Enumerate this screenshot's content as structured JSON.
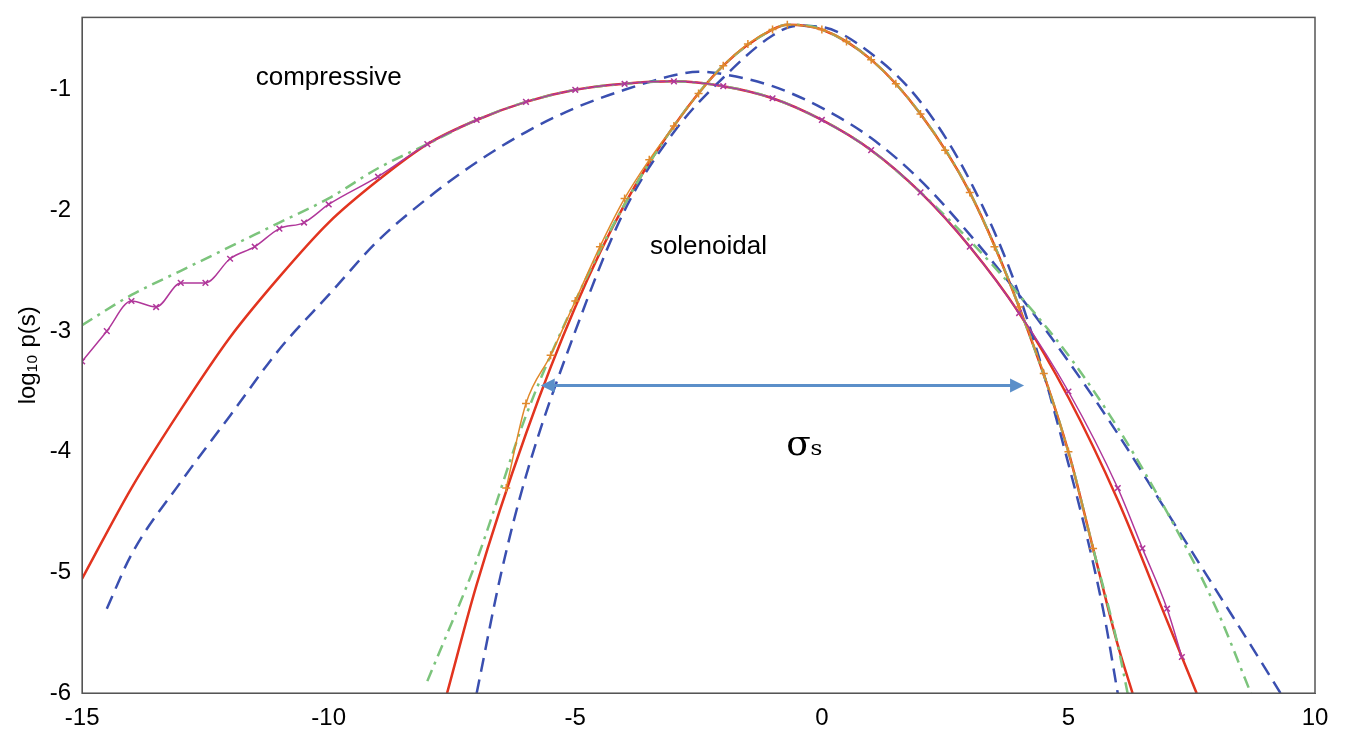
{
  "chart_data": {
    "type": "line",
    "y_label": "log₁₀ p(s)",
    "xlim": [
      -15,
      10
    ],
    "xticks": [
      -15,
      -10,
      -5,
      0,
      5,
      10
    ],
    "ylim": [
      -6,
      -0.4
    ],
    "yticks": [
      -6,
      -5,
      -4,
      -3,
      -2,
      -1
    ],
    "grid": false,
    "series": [
      {
        "color": "#b0379a",
        "line_style": "solid",
        "marker": "x",
        "x": [
          -15,
          -14.5,
          -14,
          -13.5,
          -13,
          -12.5,
          -12,
          -11.5,
          -11,
          -10.5,
          -10,
          -9,
          -8,
          -7,
          -6,
          -5,
          -4,
          -3,
          -2,
          -1,
          0,
          1,
          2,
          3,
          4,
          5,
          6,
          6.5,
          7,
          7.3
        ],
        "values": [
          -3.25,
          -3.0,
          -2.75,
          -2.8,
          -2.6,
          -2.6,
          -2.4,
          -2.3,
          -2.15,
          -2.1,
          -1.95,
          -1.72,
          -1.45,
          -1.25,
          -1.1,
          -1.0,
          -0.95,
          -0.93,
          -0.97,
          -1.07,
          -1.25,
          -1.5,
          -1.85,
          -2.3,
          -2.85,
          -3.5,
          -4.3,
          -4.8,
          -5.3,
          -5.7
        ]
      },
      {
        "color": "#e0892b",
        "line_style": "solid",
        "marker": "+",
        "x": [
          -6.4,
          -6,
          -5.5,
          -5,
          -4.5,
          -4,
          -3.5,
          -3,
          -2.5,
          -2,
          -1.5,
          -1,
          -0.7,
          0,
          0.5,
          1,
          1.5,
          2,
          2.5,
          3,
          3.5,
          4,
          4.5,
          5,
          5.5
        ],
        "values": [
          -4.3,
          -3.6,
          -3.2,
          -2.75,
          -2.3,
          -1.9,
          -1.58,
          -1.3,
          -1.03,
          -0.8,
          -0.62,
          -0.5,
          -0.46,
          -0.5,
          -0.6,
          -0.75,
          -0.95,
          -1.2,
          -1.5,
          -1.85,
          -2.3,
          -2.8,
          -3.35,
          -4.0,
          -4.8
        ]
      },
      {
        "color": "#7cc47c",
        "line_style": "dashdot",
        "x": [
          -15,
          -14,
          -13,
          -12,
          -11,
          -10,
          -9,
          -8,
          -7,
          -6,
          -5,
          -4,
          -3,
          -2,
          -1,
          0,
          1,
          2,
          3,
          4,
          5,
          6,
          7,
          8,
          8.7
        ],
        "values": [
          -2.95,
          -2.7,
          -2.5,
          -2.3,
          -2.1,
          -1.9,
          -1.65,
          -1.45,
          -1.25,
          -1.1,
          -1.0,
          -0.95,
          -0.93,
          -0.97,
          -1.07,
          -1.25,
          -1.5,
          -1.85,
          -2.25,
          -2.7,
          -3.2,
          -3.8,
          -4.5,
          -5.3,
          -6.0
        ]
      },
      {
        "color": "#7cc47c",
        "line_style": "dashdot",
        "x": [
          -8,
          -7,
          -6,
          -5,
          -4,
          -3,
          -2,
          -1,
          -0.7,
          0,
          1,
          2,
          3,
          4,
          5,
          5.5,
          6,
          6.2
        ],
        "values": [
          -5.9,
          -4.9,
          -3.7,
          -2.75,
          -1.95,
          -1.3,
          -0.8,
          -0.5,
          -0.46,
          -0.5,
          -0.75,
          -1.2,
          -1.85,
          -2.8,
          -4.0,
          -4.8,
          -5.6,
          -6.0
        ]
      },
      {
        "color": "#3a4fb0",
        "line_style": "dashed",
        "x": [
          -14.5,
          -14,
          -13,
          -12,
          -11,
          -10,
          -9,
          -8,
          -7,
          -6,
          -5,
          -4,
          -3,
          -2.5,
          -2,
          -1,
          0,
          1,
          2,
          3,
          4,
          5,
          6,
          7,
          8,
          9,
          9.3
        ],
        "values": [
          -5.3,
          -4.85,
          -4.25,
          -3.7,
          -3.15,
          -2.7,
          -2.25,
          -1.9,
          -1.6,
          -1.35,
          -1.15,
          -1.0,
          -0.88,
          -0.85,
          -0.87,
          -0.97,
          -1.15,
          -1.4,
          -1.75,
          -2.2,
          -2.7,
          -3.25,
          -3.85,
          -4.5,
          -5.15,
          -5.8,
          -6.0
        ]
      },
      {
        "color": "#3a4fb0",
        "line_style": "dashed",
        "x": [
          -7,
          -6.5,
          -6,
          -5,
          -4,
          -3,
          -2,
          -1,
          -0.5,
          0,
          1,
          2,
          3,
          4,
          5,
          5.7,
          6
        ],
        "values": [
          -6.0,
          -5.0,
          -4.2,
          -3.0,
          -2.0,
          -1.35,
          -0.9,
          -0.55,
          -0.47,
          -0.48,
          -0.7,
          -1.1,
          -1.75,
          -2.7,
          -4.1,
          -5.3,
          -6.0
        ]
      },
      {
        "color": "#e2341f",
        "line_style": "solid",
        "x": [
          -15,
          -14,
          -13,
          -12,
          -11,
          -10,
          -9,
          -8,
          -7,
          -6,
          -5,
          -4,
          -3,
          -2,
          -1,
          0,
          1,
          2,
          3,
          4,
          5,
          6,
          7,
          7.6
        ],
        "values": [
          -5.05,
          -4.3,
          -3.65,
          -3.05,
          -2.55,
          -2.1,
          -1.75,
          -1.45,
          -1.25,
          -1.1,
          -1.0,
          -0.95,
          -0.93,
          -0.97,
          -1.07,
          -1.25,
          -1.5,
          -1.85,
          -2.3,
          -2.85,
          -3.55,
          -4.4,
          -5.4,
          -6.0
        ]
      },
      {
        "color": "#e2341f",
        "line_style": "solid",
        "x": [
          -7.6,
          -7,
          -6,
          -5,
          -4,
          -3,
          -2,
          -1,
          -0.7,
          0,
          1,
          2,
          3,
          4,
          5,
          5.5,
          6,
          6.3
        ],
        "values": [
          -6.0,
          -5.1,
          -3.85,
          -2.8,
          -1.95,
          -1.3,
          -0.8,
          -0.5,
          -0.46,
          -0.5,
          -0.75,
          -1.2,
          -1.85,
          -2.8,
          -4.0,
          -4.8,
          -5.6,
          -6.0
        ]
      }
    ],
    "annotations": [
      {
        "text": "compressive",
        "x": -10,
        "y": -0.9
      },
      {
        "text": "solenoidal",
        "x": -2.3,
        "y": -2.3
      },
      {
        "text": "σₛ",
        "x": -0.35,
        "y": -3.95
      }
    ],
    "arrows": [
      {
        "x": [
          -5.7,
          4.1
        ],
        "y": -3.45,
        "color": "#5b8fc9"
      }
    ]
  }
}
